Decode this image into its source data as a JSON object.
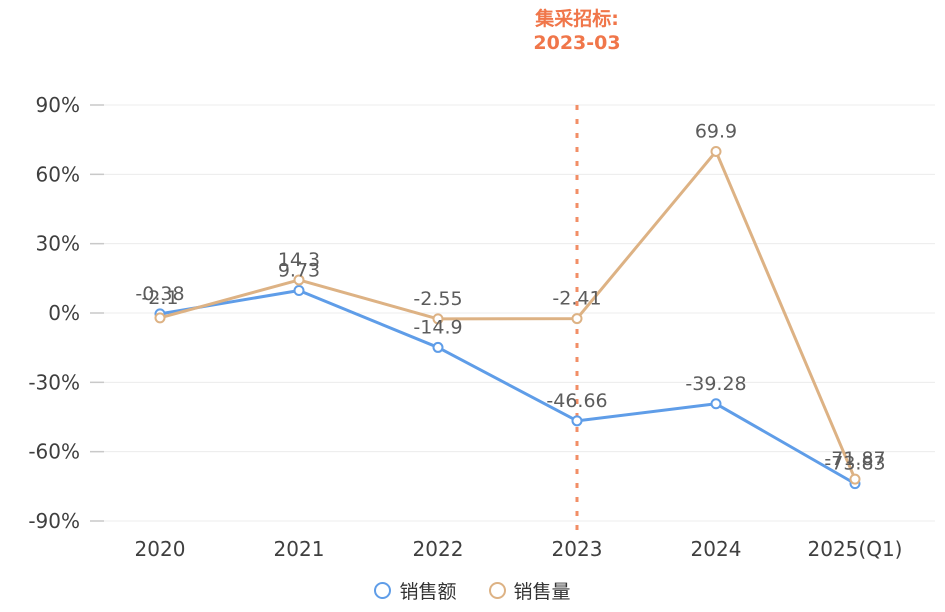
{
  "annotation": {
    "line1": "集采招标:",
    "line2": "2023-03",
    "color": "#f0764a"
  },
  "chart_data": {
    "type": "line",
    "title": "",
    "categories": [
      "2020",
      "2021",
      "2022",
      "2023",
      "2024",
      "2025(Q1)"
    ],
    "series": [
      {
        "name": "销售额",
        "color": "#5f9de8",
        "values": [
          -0.38,
          9.73,
          -14.9,
          -46.66,
          -39.28,
          -73.83
        ]
      },
      {
        "name": "销售量",
        "color": "#ddb284",
        "values": [
          -2.1,
          14.3,
          -2.55,
          -2.41,
          69.9,
          -71.87
        ]
      }
    ],
    "xlabel": "",
    "ylabel": "",
    "ylim": [
      -97,
      97
    ],
    "yticks": [
      90,
      60,
      30,
      0,
      -30,
      -60,
      -90
    ],
    "ytick_suffix": "%",
    "grid": true,
    "grid_color": "#ececec",
    "tick_color": "#c9c9c9",
    "axis_label_color": "#3f3f3f",
    "data_label_color": "#5c5c5c",
    "marker": "open-circle",
    "legend_position": "bottom",
    "reference_line": {
      "category": "2023",
      "style": "dashed",
      "color": "#f28e66",
      "label": "集采招标: 2023-03"
    }
  }
}
